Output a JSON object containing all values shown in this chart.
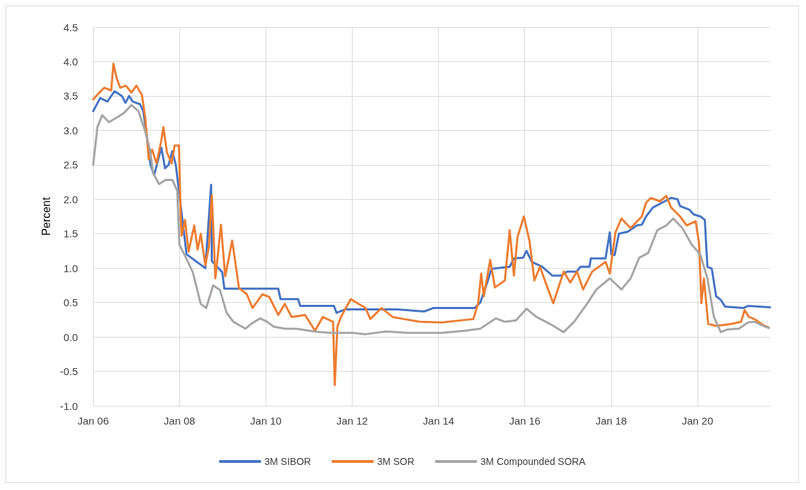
{
  "chart_data": {
    "type": "line",
    "ylabel": "Percent",
    "legend": "bottom",
    "grid": true,
    "marker": "none",
    "line_style": "solid",
    "xlim": [
      "2006-01-01",
      "2021-09-10"
    ],
    "xticks": [
      {
        "value": "2006-01-01",
        "label": "Jan 06"
      },
      {
        "value": "2008-01-01",
        "label": "Jan 08"
      },
      {
        "value": "2010-01-01",
        "label": "Jan 10"
      },
      {
        "value": "2012-01-01",
        "label": "Jan 12"
      },
      {
        "value": "2014-01-01",
        "label": "Jan 14"
      },
      {
        "value": "2016-01-01",
        "label": "Jan 16"
      },
      {
        "value": "2018-01-01",
        "label": "Jan 18"
      },
      {
        "value": "2020-01-01",
        "label": "Jan 20"
      }
    ],
    "ylim": [
      -1,
      4.5
    ],
    "yticks": [
      {
        "value": -1,
        "label": "-1.0"
      },
      {
        "value": -0.5,
        "label": "-0.5"
      },
      {
        "value": 0,
        "label": "0.0"
      },
      {
        "value": 0.5,
        "label": "0.5"
      },
      {
        "value": 1,
        "label": "1.0"
      },
      {
        "value": 1.5,
        "label": "1.5"
      },
      {
        "value": 2,
        "label": "2.0"
      },
      {
        "value": 2.5,
        "label": "2.5"
      },
      {
        "value": 3,
        "label": "3.0"
      },
      {
        "value": 3.5,
        "label": "3.5"
      },
      {
        "value": 4,
        "label": "4.0"
      },
      {
        "value": 4.5,
        "label": "4.5"
      }
    ],
    "series": [
      {
        "name": "3M SIBOR",
        "color": "#4472c4",
        "x": [
          "2006-01-01",
          "2006-03-01",
          "2006-05-01",
          "2006-07-01",
          "2006-09-01",
          "2006-10-01",
          "2006-11-01",
          "2006-12-01",
          "2007-02-01",
          "2007-03-01",
          "2007-04-01",
          "2007-05-01",
          "2007-06-01",
          "2007-07-01",
          "2007-08-01",
          "2007-09-01",
          "2007-10-01",
          "2007-11-01",
          "2007-12-01",
          "2008-03-01",
          "2008-08-07",
          "2008-09-25",
          "2008-10-01",
          "2008-12-28",
          "2009-01-15",
          "2010-04-16",
          "2010-05-05",
          "2010-10-01",
          "2010-10-19",
          "2011-07-31",
          "2011-08-22",
          "2011-11-03",
          "2013-01-15",
          "2013-09-01",
          "2013-11-17",
          "2014-11-03",
          "2014-12-20",
          "2015-02-17",
          "2015-03-25",
          "2015-08-26",
          "2015-10-01",
          "2015-12-17",
          "2016-01-15",
          "2016-03-01",
          "2016-05-26",
          "2016-08-22",
          "2016-11-03",
          "2016-12-24",
          "2017-03-14",
          "2017-04-16",
          "2017-07-01",
          "2017-07-13",
          "2017-11-14",
          "2017-12-20",
          "2018-01-01",
          "2018-01-30",
          "2018-03-07",
          "2018-05-23",
          "2018-08-07",
          "2018-09-17",
          "2018-10-23",
          "2018-12-20",
          "2019-03-07",
          "2019-05-23",
          "2019-07-16",
          "2019-08-07",
          "2019-10-23",
          "2019-11-29",
          "2020-01-26",
          "2020-03-03",
          "2020-03-25",
          "2020-05-01",
          "2020-06-07",
          "2020-07-16",
          "2020-08-22",
          "2021-01-22",
          "2021-03-03",
          "2021-09-06"
        ],
        "values": [
          3.28,
          3.47,
          3.42,
          3.57,
          3.5,
          3.4,
          3.5,
          3.42,
          3.38,
          3.28,
          2.9,
          2.5,
          2.35,
          2.55,
          2.75,
          2.45,
          2.5,
          2.7,
          2.5,
          1.2,
          1.0,
          2.21,
          1.1,
          0.94,
          0.7,
          0.7,
          0.55,
          0.55,
          0.45,
          0.45,
          0.35,
          0.4,
          0.4,
          0.37,
          0.42,
          0.42,
          0.5,
          0.79,
          0.99,
          1.02,
          1.14,
          1.15,
          1.25,
          1.09,
          1.02,
          0.89,
          0.89,
          0.95,
          0.95,
          1.02,
          1.02,
          1.14,
          1.14,
          1.52,
          1.2,
          1.19,
          1.5,
          1.53,
          1.62,
          1.63,
          1.75,
          1.88,
          1.95,
          2.02,
          2.0,
          1.9,
          1.85,
          1.78,
          1.75,
          1.7,
          1.02,
          0.99,
          0.59,
          0.54,
          0.44,
          0.42,
          0.45,
          0.43
        ]
      },
      {
        "name": "3M SOR",
        "color": "#ed7d31",
        "x": [
          "2006-01-01",
          "2006-02-06",
          "2006-04-05",
          "2006-06-03",
          "2006-06-21",
          "2006-07-20",
          "2006-08-18",
          "2006-10-05",
          "2006-11-21",
          "2007-01-01",
          "2007-02-17",
          "2007-03-18",
          "2007-04-16",
          "2007-05-15",
          "2007-06-21",
          "2007-07-31",
          "2007-08-18",
          "2007-09-17",
          "2007-10-27",
          "2007-11-21",
          "2007-12-28",
          "2008-01-10",
          "2008-01-19",
          "2008-02-17",
          "2008-03-18",
          "2008-05-05",
          "2008-06-03",
          "2008-06-29",
          "2008-08-07",
          "2008-09-06",
          "2008-10-01",
          "2008-10-31",
          "2008-12-17",
          "2009-01-22",
          "2009-03-22",
          "2009-05-19",
          "2009-07-24",
          "2009-09-10",
          "2009-12-02",
          "2010-01-30",
          "2010-04-16",
          "2010-06-10",
          "2010-08-07",
          "2010-11-29",
          "2011-02-21",
          "2011-04-27",
          "2011-07-24",
          "2011-08-07",
          "2011-08-29",
          "2011-09-28",
          "2011-12-20",
          "2012-04-23",
          "2012-06-03",
          "2012-09-06",
          "2012-12-09",
          "2013-03-14",
          "2013-07-24",
          "2014-01-30",
          "2014-10-23",
          "2014-12-02",
          "2014-12-28",
          "2015-01-19",
          "2015-03-14",
          "2015-04-23",
          "2015-07-16",
          "2015-08-26",
          "2015-10-01",
          "2015-10-31",
          "2015-12-24",
          "2016-02-10",
          "2016-03-22",
          "2016-05-08",
          "2016-06-25",
          "2016-08-29",
          "2016-11-25",
          "2017-01-19",
          "2017-03-18",
          "2017-05-08",
          "2017-07-24",
          "2017-11-14",
          "2017-12-20",
          "2018-02-06",
          "2018-03-29",
          "2018-06-14",
          "2018-09-17",
          "2018-10-23",
          "2018-12-02",
          "2019-02-17",
          "2019-04-12",
          "2019-05-23",
          "2019-08-07",
          "2019-10-01",
          "2019-12-17",
          "2020-01-15",
          "2020-02-03",
          "2020-02-24",
          "2020-04-01",
          "2020-06-07",
          "2020-10-19",
          "2021-01-04",
          "2021-02-03",
          "2021-03-11",
          "2021-04-27",
          "2021-07-13",
          "2021-08-22"
        ],
        "values": [
          3.45,
          3.52,
          3.62,
          3.58,
          3.97,
          3.75,
          3.62,
          3.65,
          3.55,
          3.65,
          3.52,
          3.18,
          2.58,
          2.72,
          2.52,
          2.85,
          3.05,
          2.68,
          2.52,
          2.78,
          2.78,
          1.83,
          1.47,
          1.7,
          1.24,
          1.62,
          1.27,
          1.5,
          1.04,
          1.31,
          2.06,
          0.85,
          1.63,
          0.88,
          1.4,
          0.71,
          0.62,
          0.42,
          0.62,
          0.58,
          0.32,
          0.48,
          0.29,
          0.32,
          0.09,
          0.29,
          0.22,
          -0.7,
          0.15,
          0.29,
          0.55,
          0.42,
          0.26,
          0.42,
          0.29,
          0.26,
          0.22,
          0.21,
          0.26,
          0.49,
          0.92,
          0.59,
          1.12,
          0.72,
          0.82,
          1.55,
          0.89,
          1.45,
          1.75,
          1.39,
          0.82,
          1.02,
          0.79,
          0.49,
          0.95,
          0.79,
          0.95,
          0.69,
          0.95,
          1.09,
          0.92,
          1.52,
          1.72,
          1.58,
          1.75,
          1.95,
          2.02,
          1.97,
          2.05,
          1.88,
          1.75,
          1.62,
          1.68,
          1.35,
          0.49,
          0.85,
          0.19,
          0.16,
          0.19,
          0.22,
          0.39,
          0.29,
          0.26,
          0.17,
          0.14
        ]
      },
      {
        "name": "3M Compounded SORA",
        "color": "#a5a5a5",
        "x": [
          "2006-01-01",
          "2006-02-06",
          "2006-03-18",
          "2006-05-15",
          "2006-07-13",
          "2006-09-17",
          "2006-11-21",
          "2007-01-19",
          "2007-03-18",
          "2007-04-27",
          "2007-05-23",
          "2007-07-13",
          "2007-09-06",
          "2007-11-03",
          "2007-12-13",
          "2008-01-01",
          "2008-02-28",
          "2008-04-23",
          "2008-06-29",
          "2008-08-14",
          "2008-10-12",
          "2008-12-09",
          "2009-02-03",
          "2009-04-01",
          "2009-07-13",
          "2009-08-29",
          "2009-11-14",
          "2010-01-12",
          "2010-03-07",
          "2010-06-10",
          "2010-09-13",
          "2011-02-14",
          "2011-06-25",
          "2012-01-01",
          "2012-04-23",
          "2012-10-12",
          "2013-04-20",
          "2014-01-30",
          "2014-08-07",
          "2014-12-20",
          "2015-04-30",
          "2015-07-16",
          "2015-10-19",
          "2016-01-15",
          "2016-04-09",
          "2016-07-31",
          "2016-11-25",
          "2017-02-21",
          "2017-06-14",
          "2017-08-29",
          "2017-12-20",
          "2018-03-29",
          "2018-06-14",
          "2018-08-26",
          "2018-11-10",
          "2019-01-26",
          "2019-04-12",
          "2019-06-10",
          "2019-08-26",
          "2019-11-10",
          "2020-01-26",
          "2020-03-25",
          "2020-05-19",
          "2020-07-16",
          "2020-09-13",
          "2020-12-17",
          "2021-03-03",
          "2021-04-27",
          "2021-07-13",
          "2021-08-29"
        ],
        "values": [
          2.5,
          3.05,
          3.22,
          3.12,
          3.18,
          3.25,
          3.37,
          3.28,
          2.98,
          2.72,
          2.38,
          2.22,
          2.28,
          2.28,
          2.12,
          1.34,
          1.14,
          0.94,
          0.48,
          0.42,
          0.75,
          0.68,
          0.35,
          0.22,
          0.12,
          0.19,
          0.27,
          0.22,
          0.15,
          0.12,
          0.12,
          0.08,
          0.06,
          0.06,
          0.04,
          0.08,
          0.06,
          0.06,
          0.09,
          0.12,
          0.27,
          0.22,
          0.24,
          0.41,
          0.29,
          0.19,
          0.07,
          0.22,
          0.49,
          0.69,
          0.85,
          0.69,
          0.85,
          1.15,
          1.22,
          1.55,
          1.62,
          1.72,
          1.58,
          1.35,
          1.19,
          0.85,
          0.29,
          0.07,
          0.11,
          0.12,
          0.21,
          0.22,
          0.16,
          0.13
        ]
      }
    ]
  }
}
